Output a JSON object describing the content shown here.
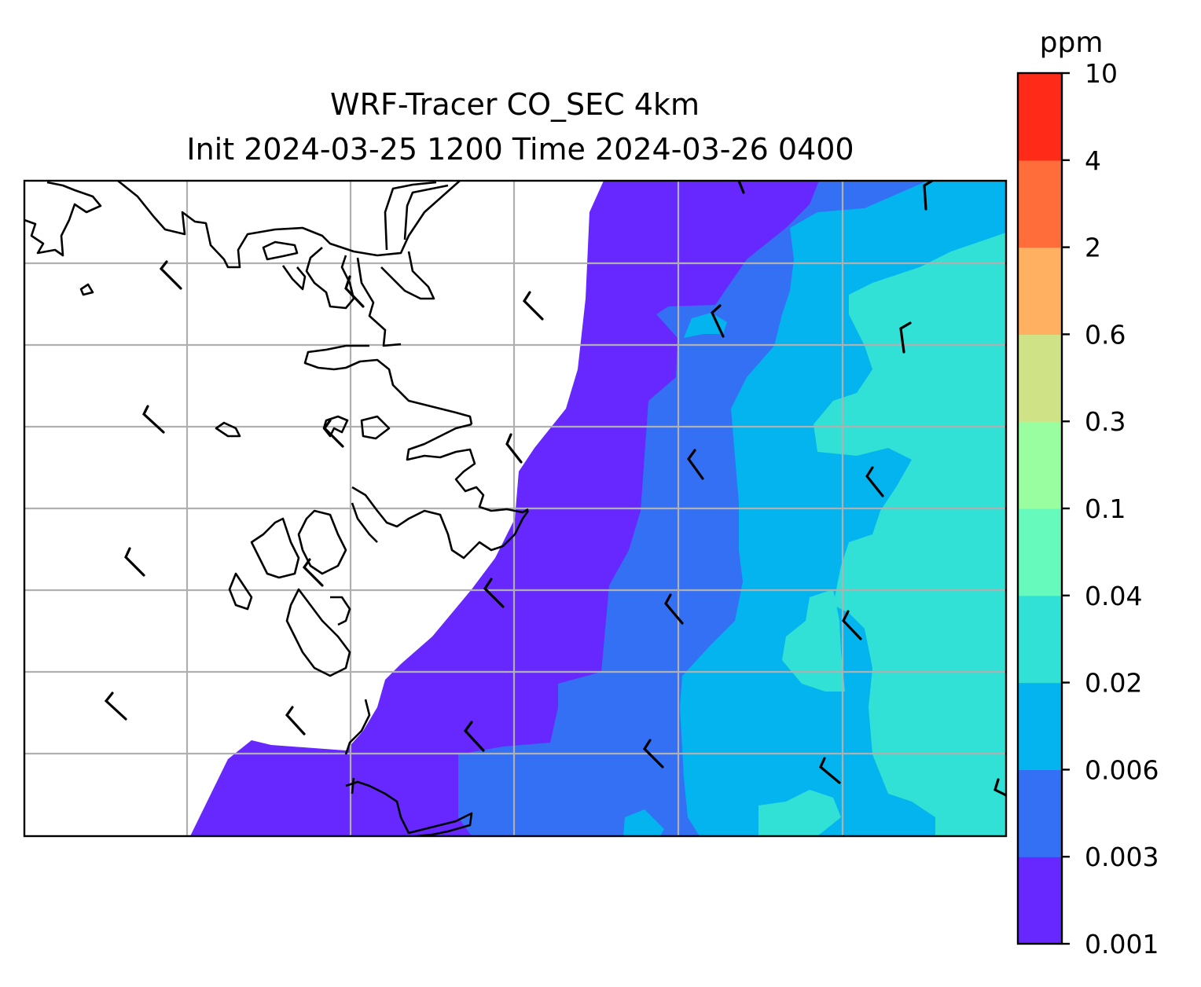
{
  "figure": {
    "title_line1": "WRF-Tracer CO_SEC 4km",
    "title_line2": "Init 2024-03-25 1200 Time 2024-03-26 0400"
  },
  "colorbar": {
    "unit": "ppm",
    "levels": [
      "0.001",
      "0.003",
      "0.006",
      "0.02",
      "0.04",
      "0.1",
      "0.3",
      "0.6",
      "2",
      "4",
      "10"
    ],
    "colors": [
      "#6628ff",
      "#3370f3",
      "#03b4ee",
      "#31e1d6",
      "#66fbbd",
      "#99fea0",
      "#cfe386",
      "#ffb061",
      "#ff6e3a",
      "#ff2a18"
    ]
  },
  "map": {
    "land_color": "#ffffff",
    "gridline_color": "#b0b0b0",
    "coastline_color": "#000000",
    "wind_barbs": "black"
  }
}
